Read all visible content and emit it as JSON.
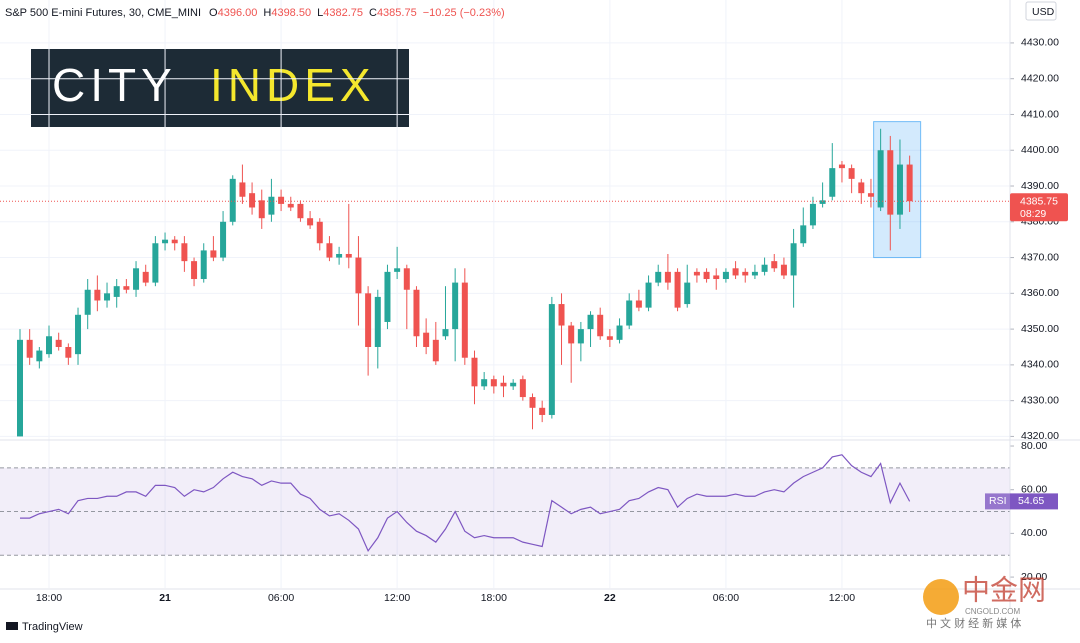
{
  "header": {
    "symbol": "S&P 500 E-mini Futures, 30, CME_MINI",
    "ohlc": [
      {
        "key": "O",
        "value": "4396.00"
      },
      {
        "key": "H",
        "value": "4398.50"
      },
      {
        "key": "L",
        "value": "4382.75"
      },
      {
        "key": "C",
        "value": "4385.75"
      }
    ],
    "change": "−10.25 (−0.23%)"
  },
  "logo": {
    "word1": "CITY",
    "word2": "INDEX"
  },
  "currency": "USD",
  "chart_data": [
    {
      "type": "candlestick",
      "categories": [
        null,
        null,
        null,
        "18:00",
        null,
        null,
        null,
        null,
        null,
        null,
        null,
        null,
        null,
        null,
        null,
        "21",
        null,
        null,
        null,
        null,
        null,
        null,
        null,
        null,
        null,
        null,
        null,
        "06:00",
        null,
        null,
        null,
        null,
        null,
        null,
        null,
        null,
        null,
        null,
        null,
        "12:00",
        null,
        null,
        null,
        null,
        null,
        null,
        null,
        null,
        null,
        "18:00",
        null,
        null,
        null,
        null,
        null,
        null,
        null,
        null,
        null,
        null,
        null,
        "22",
        null,
        null,
        null,
        null,
        null,
        null,
        null,
        null,
        null,
        null,
        null,
        "06:00",
        null,
        null,
        null,
        null,
        null,
        null,
        null,
        null,
        null,
        null,
        null,
        "12:00",
        null,
        null,
        null,
        null,
        null,
        null,
        null
      ],
      "open": [
        4320,
        4347,
        4341,
        4343,
        4347,
        4345,
        4343,
        4354,
        4361,
        4358,
        4359,
        4362,
        4361,
        4366,
        4363,
        4374,
        4375,
        4374,
        4369,
        4364,
        4372,
        4370,
        4380,
        4391,
        4388,
        4386,
        4382,
        4387,
        4385,
        4385,
        4381,
        4380,
        4374,
        4370,
        4371,
        4370,
        4360,
        4345,
        4352,
        4366,
        4367,
        4361,
        4349,
        4347,
        4348,
        4350,
        4363,
        4342,
        4334,
        4336,
        4335,
        4334,
        4336,
        4331,
        4328,
        4326,
        4357,
        4351,
        4346,
        4350,
        4354,
        4348,
        4347,
        4351,
        4358,
        4356,
        4363,
        4366,
        4366,
        4357,
        4366,
        4366,
        4365,
        4364,
        4367,
        4366,
        4365,
        4366,
        4369,
        4368,
        4365,
        4374,
        4379,
        4385,
        4387,
        4396,
        4395,
        4391,
        4388,
        4384,
        4400,
        4382,
        4396
      ],
      "high": [
        4350,
        4350,
        4345,
        4351,
        4349,
        4346,
        4356,
        4364,
        4365,
        4363,
        4364,
        4364,
        4369,
        4368,
        4376,
        4377,
        4376,
        4376,
        4370,
        4374,
        4376,
        4383,
        4393,
        4396,
        4391,
        4389,
        4392,
        4389,
        4387,
        4386,
        4383,
        4381,
        4376,
        4373,
        4385,
        4376,
        4362,
        4361,
        4368,
        4373,
        4368,
        4362,
        4353,
        4352,
        4362,
        4367,
        4367,
        4344,
        4338,
        4337,
        4337,
        4336,
        4337,
        4332,
        4330,
        4359,
        4360,
        4352,
        4352,
        4355,
        4356,
        4350,
        4353,
        4360,
        4361,
        4365,
        4368,
        4371,
        4367,
        4368,
        4367,
        4367,
        4367,
        4367,
        4369,
        4367,
        4368,
        4370,
        4371,
        4370,
        4378,
        4384,
        4387,
        4391,
        4402,
        4397,
        4396,
        4392,
        4392,
        4406,
        4404,
        4403,
        4398.5
      ],
      "low": [
        4320,
        4340,
        4339,
        4342,
        4344,
        4340,
        4340,
        4350,
        4355,
        4356,
        4356,
        4360,
        4359,
        4362,
        4362,
        4372,
        4372,
        4366,
        4362,
        4363,
        4369,
        4369,
        4379,
        4385,
        4382,
        4378,
        4380,
        4383,
        4383,
        4380,
        4378,
        4372,
        4369,
        4368,
        4367,
        4351,
        4337,
        4339,
        4350,
        4364,
        4350,
        4345,
        4343,
        4340,
        4347,
        4341,
        4340,
        4329,
        4333,
        4332,
        4331,
        4333,
        4330,
        4322,
        4324,
        4325,
        4340,
        4335,
        4341,
        4345,
        4347,
        4345,
        4346,
        4350,
        4355,
        4355,
        4362,
        4361,
        4355,
        4356,
        4363,
        4363,
        4361,
        4363,
        4364,
        4363,
        4364,
        4365,
        4366,
        4364,
        4356,
        4373,
        4378,
        4384,
        4386,
        4391,
        4388,
        4385,
        4384,
        4383,
        4372,
        4378,
        4382.75
      ],
      "close": [
        4347,
        4342,
        4344,
        4348,
        4345,
        4342,
        4354,
        4361,
        4358,
        4360,
        4362,
        4361,
        4367,
        4363,
        4374,
        4375,
        4374,
        4369,
        4364,
        4372,
        4370,
        4380,
        4392,
        4387,
        4384,
        4381,
        4387,
        4385,
        4384,
        4381,
        4379,
        4374,
        4370,
        4371,
        4370,
        4360,
        4345,
        4359,
        4366,
        4367,
        4361,
        4348,
        4345,
        4341,
        4350,
        4363,
        4342,
        4334,
        4336,
        4334,
        4334,
        4335,
        4331,
        4328,
        4326,
        4357,
        4351,
        4346,
        4350,
        4354,
        4348,
        4347,
        4351,
        4358,
        4356,
        4363,
        4366,
        4363,
        4356,
        4363,
        4365,
        4364,
        4364,
        4366,
        4365,
        4365,
        4366,
        4368,
        4367,
        4365,
        4374,
        4379,
        4385,
        4386,
        4395,
        4395,
        4392,
        4388,
        4387,
        4400,
        4382,
        4396,
        4385.75
      ],
      "up_color": "#26a69a",
      "down_color": "#ef5350",
      "ylim": [
        4319,
        4442
      ],
      "yticks": [
        {
          "value": 4320,
          "label": "4320.00"
        },
        {
          "value": 4330,
          "label": "4330.00"
        },
        {
          "value": 4340,
          "label": "4340.00"
        },
        {
          "value": 4350,
          "label": "4350.00"
        },
        {
          "value": 4360,
          "label": "4360.00"
        },
        {
          "value": 4370,
          "label": "4370.00"
        },
        {
          "value": 4380,
          "label": "4380.00"
        },
        {
          "value": 4390,
          "label": "4390.00"
        },
        {
          "value": 4400,
          "label": "4400.00"
        },
        {
          "value": 4410,
          "label": "4410.00"
        },
        {
          "value": 4420,
          "label": "4420.00"
        },
        {
          "value": 4430,
          "label": "4430.00"
        }
      ],
      "grid": true,
      "countdown": "08:29",
      "highlight": {
        "first": 89,
        "last": 92,
        "low": 4370,
        "high": 4408,
        "color": "#2196f3"
      }
    },
    {
      "type": "line",
      "name": "RSI",
      "color": "#7e57c2",
      "values": [
        47,
        47,
        49,
        50,
        51,
        49,
        55,
        56,
        56,
        57,
        57,
        59,
        59,
        57,
        62,
        62,
        61,
        57,
        60,
        59,
        61,
        65,
        68,
        66,
        65,
        62,
        64,
        63,
        63,
        58,
        56,
        51,
        48,
        49,
        46,
        42,
        32,
        38,
        47,
        50,
        45,
        41,
        39,
        36,
        42,
        50,
        41,
        38,
        39,
        38,
        38,
        38,
        36,
        35,
        34,
        55,
        52,
        49,
        51,
        52,
        49,
        50,
        51,
        55,
        56,
        59,
        61,
        60,
        52,
        56,
        58,
        57,
        57,
        57,
        58,
        57,
        57,
        59,
        60,
        59,
        63,
        66,
        68,
        70,
        75,
        76,
        71,
        68,
        66,
        72,
        54,
        63,
        54.65
      ],
      "ylim": [
        15,
        82.3
      ],
      "yticks": [
        {
          "value": 20,
          "label": "20.00"
        },
        {
          "value": 40,
          "label": "40.00"
        },
        {
          "value": 60,
          "label": "60.00"
        },
        {
          "value": 80,
          "label": "80.00"
        }
      ],
      "levels": [
        70,
        50,
        30
      ]
    }
  ],
  "footer": "TradingView",
  "watermark": {
    "name": "中金网",
    "site": "CNGOLD.COM",
    "tagline": "中 文 财 经 新 媒 体"
  }
}
